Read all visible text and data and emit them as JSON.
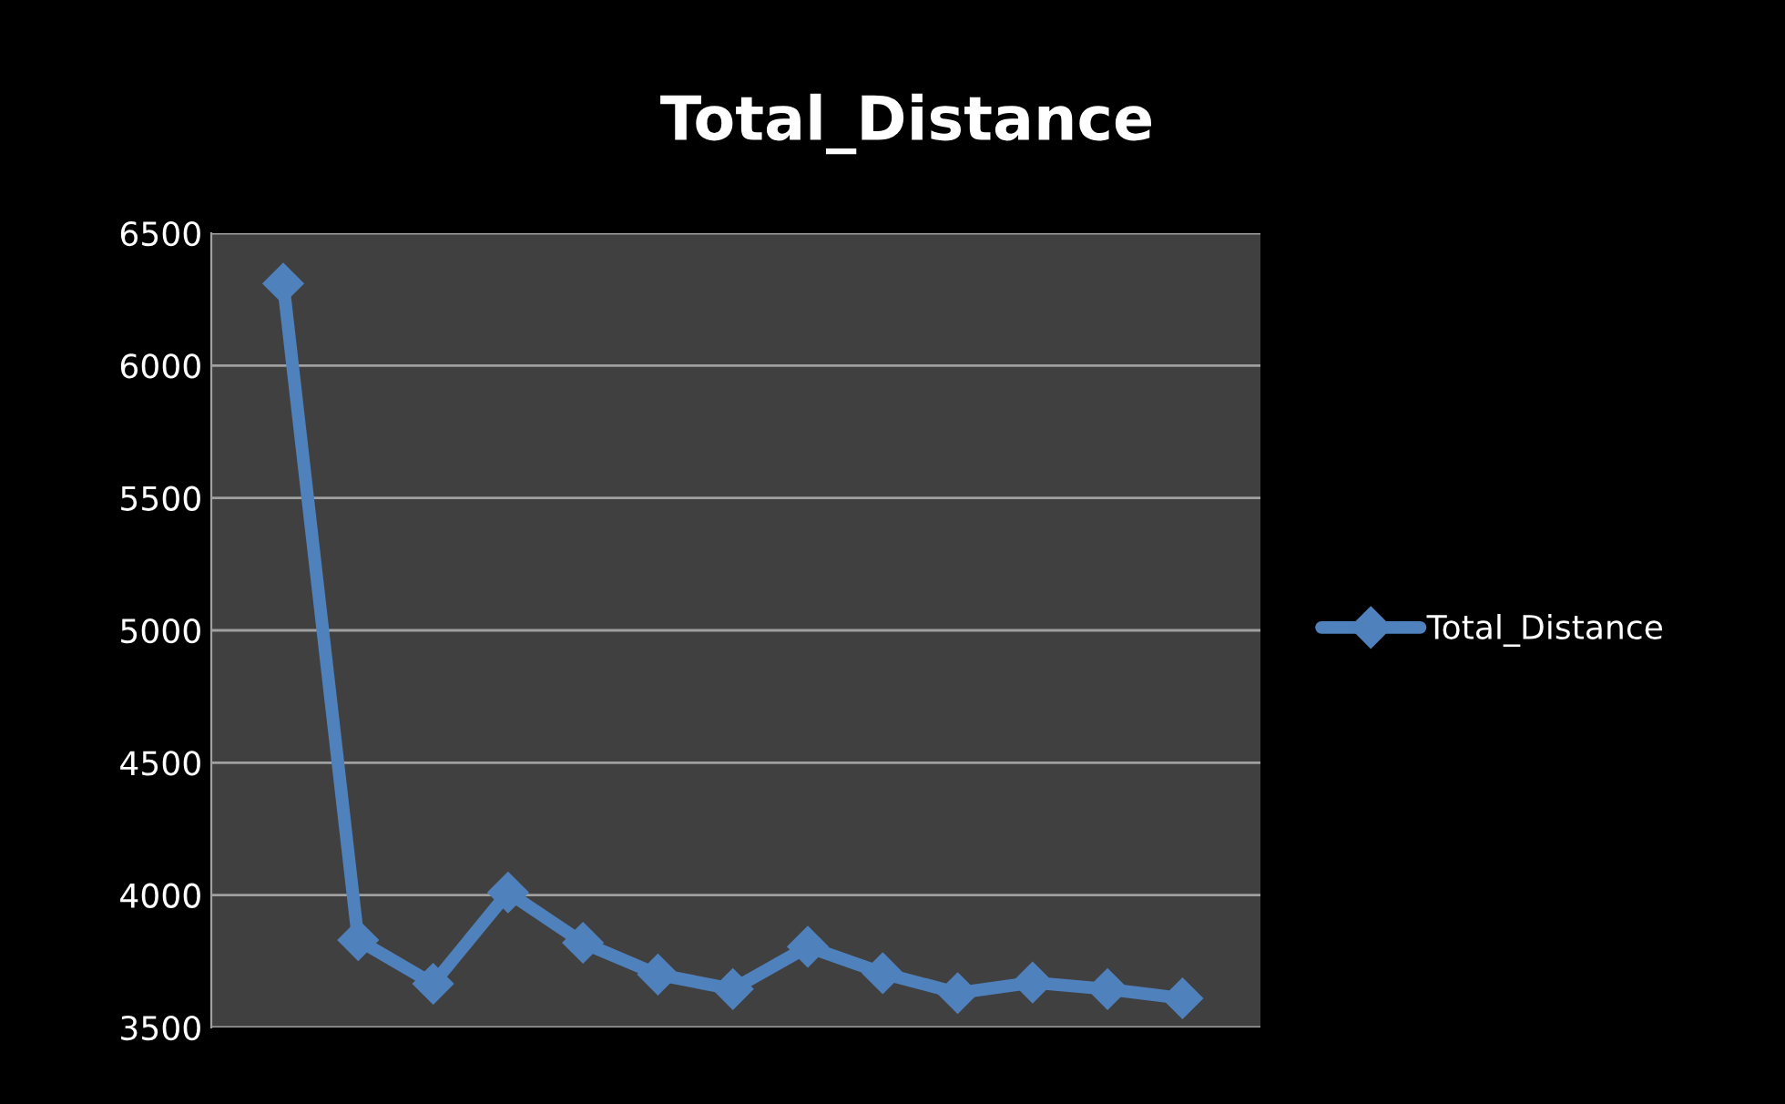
{
  "chart_data": {
    "type": "line",
    "title": "Total_Distance",
    "categories": [
      null,
      null,
      null,
      null,
      null,
      null,
      null,
      null,
      null,
      null,
      null,
      null,
      null
    ],
    "series": [
      {
        "name": "Total_Distance",
        "color": "#4f81bd",
        "values": [
          6310,
          3830,
          3665,
          4010,
          3820,
          3700,
          3645,
          3805,
          3705,
          3630,
          3670,
          3645,
          3610
        ]
      }
    ],
    "ylim": [
      3500,
      6500
    ],
    "yticks": [
      3500,
      4000,
      4500,
      5000,
      5500,
      6000,
      6500
    ],
    "grid": "y",
    "legend": "right",
    "marker": "diamond",
    "line_style": "solid",
    "tick_labels": "y"
  }
}
